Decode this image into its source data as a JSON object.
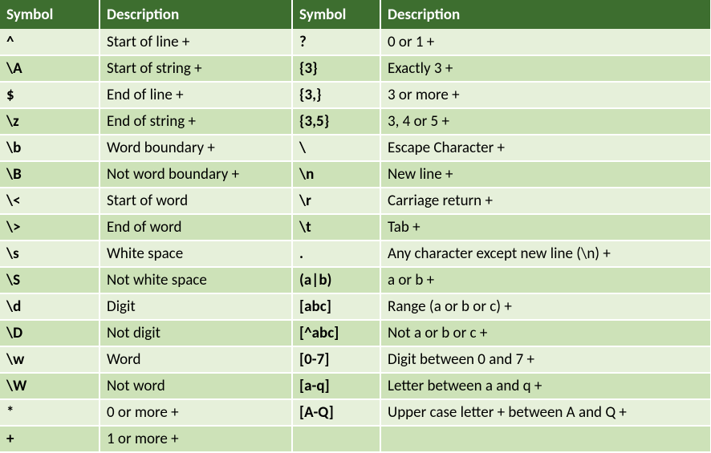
{
  "table": {
    "header_bg": "#3d6e2f",
    "header_fg": "#ffffff",
    "row_light_bg": "#e6f0da",
    "row_dark_bg": "#cde2b8",
    "text_color": "#000000",
    "columns": [
      "Symbol",
      "Description",
      "Symbol",
      "Description"
    ],
    "rows": [
      {
        "s1": "^",
        "d1": "Start of line +",
        "s2": "?",
        "d2": "0 or 1 +"
      },
      {
        "s1": "\\A",
        "d1": "Start of string +",
        "s2": "{3}",
        "d2": "Exactly 3 +"
      },
      {
        "s1": "$",
        "d1": "End of line +",
        "s2": "{3,}",
        "d2": "3 or more +"
      },
      {
        "s1": "\\z",
        "d1": "End of string +",
        "s2": "{3,5}",
        "d2": "3, 4 or 5 +"
      },
      {
        "s1": "\\b",
        "d1": "Word boundary +",
        "s2": "\\",
        "d2": "Escape Character +"
      },
      {
        "s1": "\\B",
        "d1": "Not word boundary +",
        "s2": "\\n",
        "d2": "New line +"
      },
      {
        "s1": "\\<",
        "d1": "Start of word",
        "s2": "\\r",
        "d2": "Carriage return +"
      },
      {
        "s1": "\\>",
        "d1": "End of word",
        "s2": "\\t",
        "d2": "Tab +"
      },
      {
        "s1": "\\s",
        "d1": "White space",
        "s2": ".",
        "d2": "Any character except new line (\\n) +"
      },
      {
        "s1": "\\S",
        "d1": "Not white space",
        "s2": "(a|b)",
        "d2": "a or b +"
      },
      {
        "s1": "\\d",
        "d1": "Digit",
        "s2": "[abc]",
        "d2": "Range (a or b or c) +"
      },
      {
        "s1": "\\D",
        "d1": "Not digit",
        "s2": "[^abc]",
        "d2": "Not a or b or c +"
      },
      {
        "s1": "\\w",
        "d1": "Word",
        "s2": "[0-7]",
        "d2": "Digit between 0 and 7 +"
      },
      {
        "s1": "\\W",
        "d1": "Not word",
        "s2": "[a-q]",
        "d2": "Letter between a and q +"
      },
      {
        "s1": "*",
        "d1": "0 or more +",
        "s2": "[A-Q]",
        "d2": "Upper case letter + between A and Q +"
      },
      {
        "s1": "+",
        "d1": "1 or more +",
        "s2": "",
        "d2": ""
      }
    ]
  }
}
